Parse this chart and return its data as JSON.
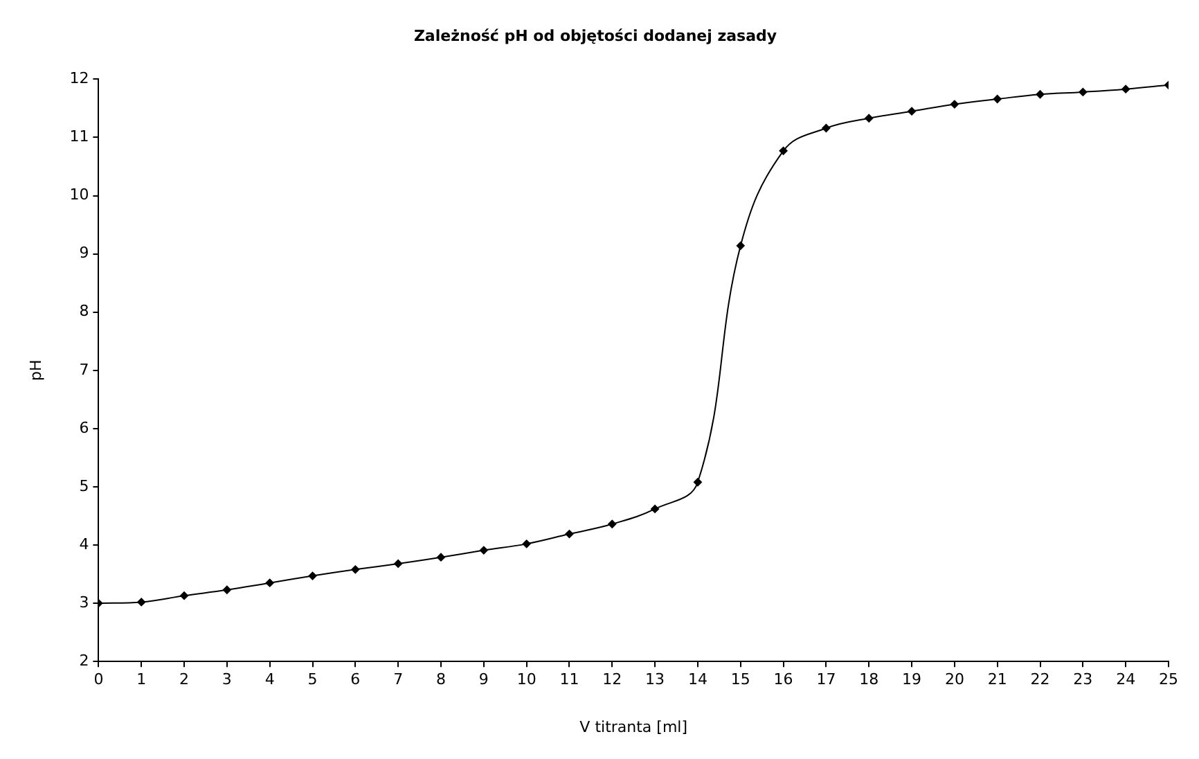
{
  "chart_data": {
    "type": "line",
    "title": "Zależność pH od objętości dodanej zasady",
    "xlabel": "V titranta [ml]",
    "ylabel": "pH",
    "x": [
      0,
      1,
      2,
      3,
      4,
      5,
      6,
      7,
      8,
      9,
      10,
      11,
      12,
      13,
      14,
      15,
      16,
      17,
      18,
      19,
      20,
      21,
      22,
      23,
      24,
      25
    ],
    "series": [
      {
        "color": "#000000",
        "values": [
          3.0,
          3.02,
          3.13,
          3.23,
          3.35,
          3.47,
          3.58,
          3.68,
          3.79,
          3.91,
          4.02,
          4.19,
          4.36,
          4.62,
          5.08,
          9.14,
          10.77,
          11.16,
          11.33,
          11.45,
          11.57,
          11.66,
          11.74,
          11.78,
          11.83,
          11.9
        ]
      }
    ],
    "xlim": [
      0,
      25
    ],
    "xticks": [
      0,
      1,
      2,
      3,
      4,
      5,
      6,
      7,
      8,
      9,
      10,
      11,
      12,
      13,
      14,
      15,
      16,
      17,
      18,
      19,
      20,
      21,
      22,
      23,
      24,
      25
    ],
    "ylim": [
      2,
      12
    ],
    "yticks": [
      2,
      3,
      4,
      5,
      6,
      7,
      8,
      9,
      10,
      11,
      12
    ],
    "grid": false,
    "legend": false,
    "marker": "diamond",
    "line_style": "solid"
  }
}
